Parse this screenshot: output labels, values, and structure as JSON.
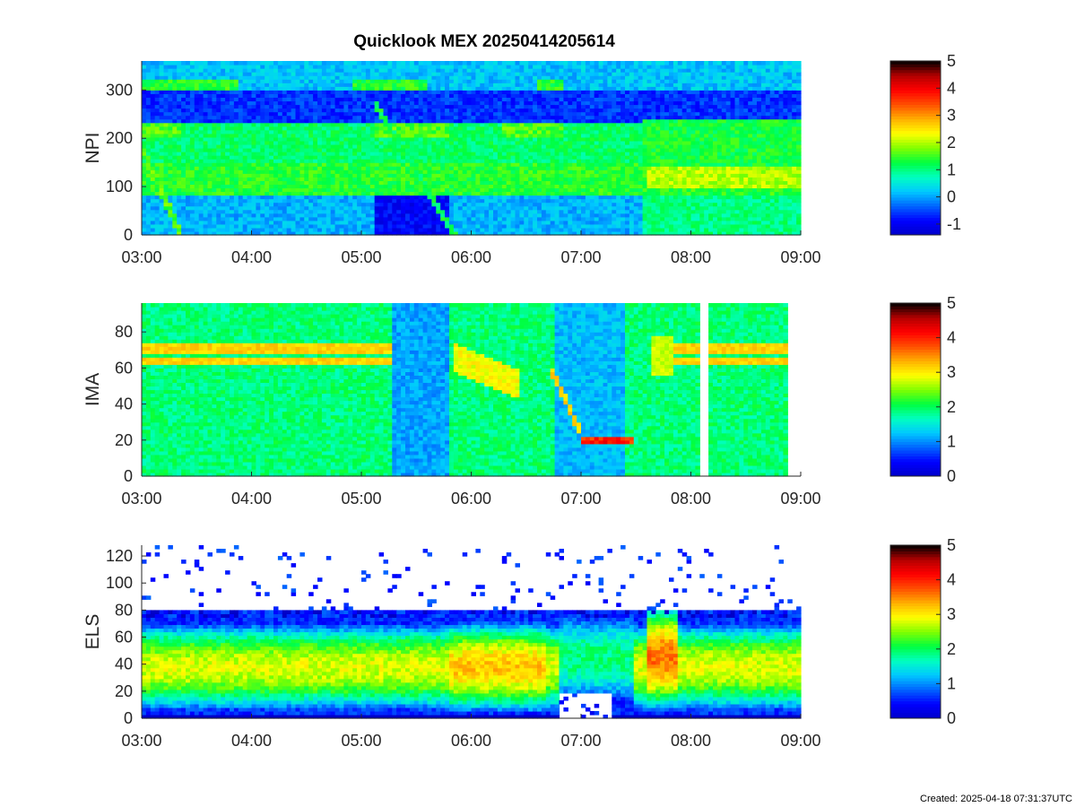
{
  "title": "Quicklook MEX 20250414205614",
  "footer": "Created: 2025-04-18 07:31:37UTC",
  "colormap": [
    "#0000c8",
    "#0000ff",
    "#0064ff",
    "#00c8ff",
    "#00ffc0",
    "#00ff40",
    "#80ff00",
    "#ffff00",
    "#ffb000",
    "#ff5000",
    "#ff0000",
    "#b40000",
    "#000000"
  ],
  "chart_data": [
    {
      "type": "heatmap",
      "panel": "NPI",
      "ylabel": "NPI",
      "xlabel": "",
      "x_ticks": [
        "03:00",
        "04:00",
        "05:00",
        "06:00",
        "07:00",
        "08:00",
        "09:00"
      ],
      "y_ticks": [
        0,
        100,
        200,
        300
      ],
      "ylim": [
        0,
        360
      ],
      "xlim": [
        "03:00",
        "09:00"
      ],
      "data_end": "09:00",
      "colorbar": {
        "ticks": [
          -1,
          0,
          1,
          2,
          3,
          4,
          5
        ],
        "range": [
          -1.4,
          5
        ]
      },
      "grid": false
    },
    {
      "type": "heatmap",
      "panel": "IMA",
      "ylabel": "IMA",
      "xlabel": "",
      "x_ticks": [
        "03:00",
        "04:00",
        "05:00",
        "06:00",
        "07:00",
        "08:00",
        "09:00"
      ],
      "y_ticks": [
        0,
        20,
        40,
        60,
        80
      ],
      "ylim": [
        0,
        96
      ],
      "xlim": [
        "03:00",
        "09:00"
      ],
      "data_end": "08:52",
      "gap": [
        "08:04",
        "08:10"
      ],
      "colorbar": {
        "ticks": [
          0,
          1,
          2,
          3,
          4,
          5
        ],
        "range": [
          0,
          5
        ]
      },
      "grid": false
    },
    {
      "type": "heatmap",
      "panel": "ELS",
      "ylabel": "ELS",
      "xlabel": "",
      "x_ticks": [
        "03:00",
        "04:00",
        "05:00",
        "06:00",
        "07:00",
        "08:00",
        "09:00"
      ],
      "y_ticks": [
        0,
        20,
        40,
        60,
        80,
        100,
        120
      ],
      "ylim": [
        0,
        128
      ],
      "xlim": [
        "03:00",
        "09:00"
      ],
      "data_end": "09:00",
      "colorbar": {
        "ticks": [
          0,
          1,
          2,
          3,
          4,
          5
        ],
        "range": [
          0,
          5
        ]
      },
      "grid": false
    }
  ]
}
